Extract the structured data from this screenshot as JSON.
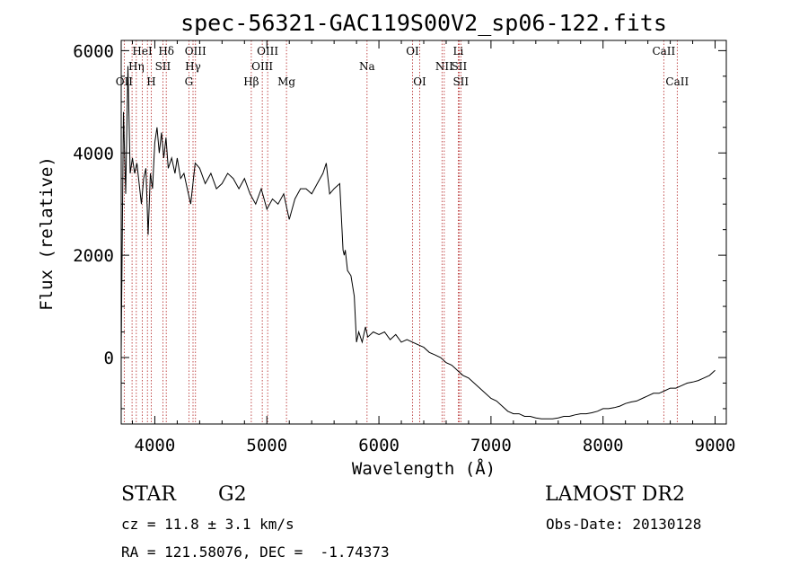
{
  "chart_data": {
    "type": "line",
    "title": "spec-56321-GAC119S00V2_sp06-122.fits",
    "xlabel": "Wavelength (Å)",
    "ylabel": "Flux (relative)",
    "xlim": [
      3700,
      9100
    ],
    "ylim": [
      -1300,
      6200
    ],
    "xticks": [
      4000,
      5000,
      6000,
      7000,
      8000,
      9000
    ],
    "yticks": [
      0,
      2000,
      4000,
      6000
    ],
    "grid": false,
    "series": [
      {
        "color": "#000000",
        "x": [
          3700,
          3720,
          3740,
          3760,
          3780,
          3800,
          3820,
          3840,
          3860,
          3880,
          3900,
          3920,
          3940,
          3960,
          3980,
          4000,
          4020,
          4040,
          4060,
          4080,
          4100,
          4120,
          4150,
          4180,
          4200,
          4230,
          4260,
          4290,
          4320,
          4340,
          4360,
          4400,
          4450,
          4500,
          4550,
          4600,
          4650,
          4700,
          4750,
          4800,
          4850,
          4900,
          4950,
          5000,
          5050,
          5100,
          5150,
          5200,
          5250,
          5300,
          5350,
          5400,
          5450,
          5500,
          5530,
          5560,
          5600,
          5650,
          5680,
          5690,
          5700,
          5720,
          5750,
          5780,
          5800,
          5820,
          5850,
          5880,
          5900,
          5950,
          6000,
          6050,
          6100,
          6150,
          6200,
          6250,
          6300,
          6350,
          6400,
          6450,
          6500,
          6550,
          6600,
          6650,
          6700,
          6750,
          6800,
          6850,
          6900,
          6950,
          7000,
          7050,
          7100,
          7150,
          7200,
          7250,
          7300,
          7350,
          7400,
          7450,
          7500,
          7550,
          7600,
          7650,
          7700,
          7750,
          7800,
          7850,
          7900,
          7950,
          8000,
          8050,
          8100,
          8150,
          8200,
          8250,
          8300,
          8350,
          8400,
          8450,
          8500,
          8550,
          8600,
          8650,
          8700,
          8750,
          8800,
          8850,
          8900,
          8950,
          9000
        ],
        "y": [
          100,
          4800,
          3200,
          5700,
          3600,
          3900,
          3600,
          3800,
          3400,
          3000,
          3500,
          3700,
          2400,
          3600,
          3300,
          4200,
          4500,
          4000,
          4400,
          3900,
          4300,
          3700,
          3900,
          3600,
          3900,
          3500,
          3600,
          3300,
          3000,
          3400,
          3800,
          3700,
          3400,
          3600,
          3300,
          3400,
          3600,
          3500,
          3300,
          3500,
          3200,
          3000,
          3300,
          2900,
          3100,
          3000,
          3200,
          2700,
          3100,
          3300,
          3300,
          3200,
          3400,
          3600,
          3800,
          3200,
          3300,
          3400,
          2100,
          2000,
          2100,
          1700,
          1600,
          1200,
          300,
          500,
          300,
          600,
          400,
          500,
          450,
          500,
          350,
          450,
          300,
          350,
          300,
          250,
          200,
          100,
          50,
          0,
          -100,
          -150,
          -250,
          -350,
          -400,
          -500,
          -600,
          -700,
          -800,
          -850,
          -950,
          -1050,
          -1100,
          -1100,
          -1150,
          -1150,
          -1180,
          -1200,
          -1200,
          -1200,
          -1180,
          -1150,
          -1150,
          -1120,
          -1100,
          -1100,
          -1080,
          -1050,
          -1000,
          -1000,
          -980,
          -950,
          -900,
          -870,
          -850,
          -800,
          -750,
          -700,
          -700,
          -650,
          -600,
          -600,
          -550,
          -500,
          -480,
          -450,
          -400,
          -350,
          -250
        ]
      }
    ],
    "line_markers": [
      {
        "wavelength": 3727,
        "label": "OII",
        "row": 3
      },
      {
        "wavelength": 3797,
        "label": "",
        "row": 0
      },
      {
        "wavelength": 3835,
        "label": "Hη",
        "row": 2
      },
      {
        "wavelength": 3889,
        "label": "HeI",
        "row": 1
      },
      {
        "wavelength": 3934,
        "label": "",
        "row": 0
      },
      {
        "wavelength": 3968,
        "label": "H",
        "row": 3
      },
      {
        "wavelength": 4072,
        "label": "SII",
        "row": 2
      },
      {
        "wavelength": 4102,
        "label": "Hδ",
        "row": 1
      },
      {
        "wavelength": 4304,
        "label": "G",
        "row": 3
      },
      {
        "wavelength": 4341,
        "label": "Hγ",
        "row": 2
      },
      {
        "wavelength": 4363,
        "label": "OIII",
        "row": 1
      },
      {
        "wavelength": 4861,
        "label": "Hβ",
        "row": 3
      },
      {
        "wavelength": 4959,
        "label": "OIII",
        "row": 2
      },
      {
        "wavelength": 5007,
        "label": "OIII",
        "row": 1
      },
      {
        "wavelength": 5175,
        "label": "Mg",
        "row": 3
      },
      {
        "wavelength": 5894,
        "label": "Na",
        "row": 2
      },
      {
        "wavelength": 6300,
        "label": "OI",
        "row": 1
      },
      {
        "wavelength": 6364,
        "label": "OI",
        "row": 3
      },
      {
        "wavelength": 6563,
        "label": "",
        "row": 0
      },
      {
        "wavelength": 6583,
        "label": "NII",
        "row": 2
      },
      {
        "wavelength": 6708,
        "label": "Li",
        "row": 1
      },
      {
        "wavelength": 6716,
        "label": "SII",
        "row": 2
      },
      {
        "wavelength": 6731,
        "label": "SII",
        "row": 3
      },
      {
        "wavelength": 8542,
        "label": "CaII",
        "row": 1
      },
      {
        "wavelength": 8662,
        "label": "CaII",
        "row": 3
      }
    ]
  },
  "info": {
    "object_type": "STAR",
    "subclass": "G2",
    "survey": "LAMOST DR2",
    "cz": "cz = 11.8 ± 3.1 km/s",
    "obs_date": "Obs-Date: 20130128",
    "coords": "RA = 121.58076, DEC =  -1.74373"
  },
  "colors": {
    "spectrum": "#000000",
    "line_markers": "#b22222",
    "background": "#ffffff"
  }
}
